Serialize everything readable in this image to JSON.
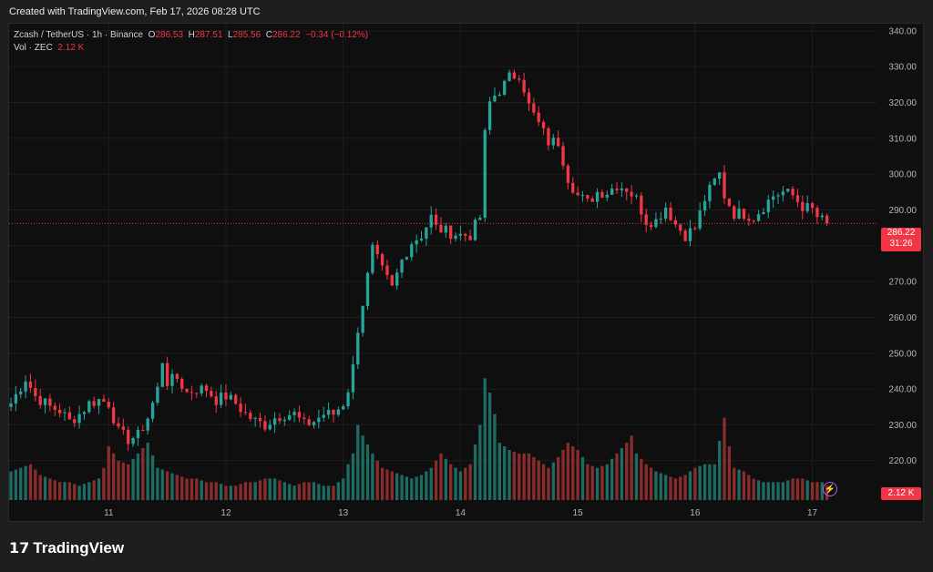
{
  "header": {
    "created": "Created with TradingView.com, Feb 17, 2026 08:28 UTC"
  },
  "legend": {
    "symbol": "Zcash / TetherUS · 1h · Binance",
    "o_label": "O",
    "o": "286.53",
    "h_label": "H",
    "h": "287.51",
    "l_label": "L",
    "l": "285.56",
    "c_label": "C",
    "c": "286.22",
    "change": "−0.34 (−0.12%)",
    "vol_label": "Vol · ZEC",
    "vol": "2.12 K"
  },
  "price_tag": {
    "price": "286.22",
    "countdown": "31:26"
  },
  "vol_tag": "2.12 K",
  "brand": "TradingView",
  "colors": {
    "up": "#26a69a",
    "down": "#f23645",
    "vol_up": "#1e6b63",
    "vol_down": "#8a2c2c",
    "background": "#0f0f0f",
    "grid": "#1e1e1e"
  },
  "chart_data": {
    "type": "candlestick",
    "y_ticks": [
      220,
      230,
      240,
      250,
      260,
      270,
      280,
      290,
      300,
      310,
      320,
      330,
      340
    ],
    "y_tick_labels": [
      "220.00",
      "230.00",
      "240.00",
      "250.00",
      "260.00",
      "270.00",
      "280.00",
      "290.00",
      "300.00",
      "310.00",
      "320.00",
      "330.00",
      "340.00"
    ],
    "ylim": [
      209,
      342
    ],
    "x_tick_labels": [
      "11",
      "12",
      "13",
      "14",
      "15",
      "16",
      "17"
    ],
    "current_price": 286.22,
    "series": [
      {
        "name": "Zcash / TetherUS",
        "close_points": [
          [
            0,
            236
          ],
          [
            3,
            243
          ],
          [
            5,
            238
          ],
          [
            8,
            235
          ],
          [
            10,
            234
          ],
          [
            12,
            231
          ],
          [
            14,
            233
          ],
          [
            16,
            236
          ],
          [
            18,
            237
          ],
          [
            20,
            236
          ],
          [
            22,
            228
          ],
          [
            24,
            226
          ],
          [
            26,
            227
          ],
          [
            28,
            232
          ],
          [
            30,
            240
          ],
          [
            31,
            248
          ],
          [
            32,
            242
          ],
          [
            34,
            243
          ],
          [
            36,
            239
          ],
          [
            38,
            240
          ],
          [
            40,
            240
          ],
          [
            42,
            237
          ],
          [
            44,
            238
          ],
          [
            46,
            236
          ],
          [
            48,
            233
          ],
          [
            50,
            231
          ],
          [
            52,
            230
          ],
          [
            54,
            232
          ],
          [
            56,
            233
          ],
          [
            58,
            233
          ],
          [
            60,
            230
          ],
          [
            62,
            231
          ],
          [
            64,
            233
          ],
          [
            66,
            233
          ],
          [
            68,
            236
          ],
          [
            69,
            240
          ],
          [
            70,
            246
          ],
          [
            71,
            257
          ],
          [
            72,
            264
          ],
          [
            74,
            279
          ],
          [
            75,
            276
          ],
          [
            76,
            273
          ],
          [
            78,
            268
          ],
          [
            80,
            276
          ],
          [
            82,
            281
          ],
          [
            84,
            283
          ],
          [
            86,
            288
          ],
          [
            87,
            285
          ],
          [
            89,
            284
          ],
          [
            92,
            283
          ],
          [
            94,
            283
          ],
          [
            96,
            288
          ],
          [
            97,
            311
          ],
          [
            98,
            320
          ],
          [
            99,
            322
          ],
          [
            101,
            325
          ],
          [
            102,
            327
          ],
          [
            104,
            328
          ],
          [
            105,
            324
          ],
          [
            106,
            319
          ],
          [
            108,
            314
          ],
          [
            110,
            309
          ],
          [
            112,
            309
          ],
          [
            114,
            299
          ],
          [
            116,
            294
          ],
          [
            118,
            292
          ],
          [
            120,
            295
          ],
          [
            122,
            295
          ],
          [
            124,
            297
          ],
          [
            126,
            296
          ],
          [
            128,
            293
          ],
          [
            130,
            287
          ],
          [
            132,
            287
          ],
          [
            134,
            291
          ],
          [
            136,
            286
          ],
          [
            138,
            283
          ],
          [
            140,
            285
          ],
          [
            142,
            293
          ],
          [
            144,
            298
          ],
          [
            145,
            300
          ],
          [
            146,
            294
          ],
          [
            148,
            289
          ],
          [
            150,
            289
          ],
          [
            152,
            288
          ],
          [
            154,
            291
          ],
          [
            156,
            294
          ],
          [
            158,
            295
          ],
          [
            160,
            294
          ],
          [
            162,
            291
          ],
          [
            164,
            290
          ],
          [
            165,
            288
          ],
          [
            166,
            287
          ],
          [
            167,
            286.22
          ]
        ],
        "volume_points": [
          [
            0,
            217
          ],
          [
            2,
            218
          ],
          [
            4,
            219
          ],
          [
            6,
            216
          ],
          [
            8,
            215
          ],
          [
            10,
            214
          ],
          [
            12,
            214
          ],
          [
            14,
            213
          ],
          [
            16,
            214
          ],
          [
            18,
            215
          ],
          [
            19,
            218
          ],
          [
            20,
            224
          ],
          [
            22,
            220
          ],
          [
            24,
            219
          ],
          [
            26,
            222
          ],
          [
            28,
            225
          ],
          [
            30,
            218
          ],
          [
            32,
            217
          ],
          [
            34,
            216
          ],
          [
            36,
            215
          ],
          [
            38,
            215
          ],
          [
            40,
            214
          ],
          [
            42,
            214
          ],
          [
            44,
            213
          ],
          [
            46,
            213
          ],
          [
            48,
            214
          ],
          [
            50,
            214
          ],
          [
            52,
            215
          ],
          [
            54,
            215
          ],
          [
            56,
            214
          ],
          [
            58,
            213
          ],
          [
            60,
            214
          ],
          [
            62,
            214
          ],
          [
            64,
            213
          ],
          [
            66,
            213
          ],
          [
            68,
            215
          ],
          [
            69,
            219
          ],
          [
            70,
            222
          ],
          [
            71,
            230
          ],
          [
            72,
            227
          ],
          [
            74,
            222
          ],
          [
            76,
            218
          ],
          [
            78,
            217
          ],
          [
            80,
            216
          ],
          [
            82,
            215
          ],
          [
            84,
            216
          ],
          [
            86,
            218
          ],
          [
            88,
            222
          ],
          [
            90,
            219
          ],
          [
            92,
            217
          ],
          [
            94,
            219
          ],
          [
            96,
            230
          ],
          [
            97,
            243
          ],
          [
            98,
            239
          ],
          [
            99,
            233
          ],
          [
            100,
            225
          ],
          [
            102,
            223
          ],
          [
            104,
            222
          ],
          [
            106,
            222
          ],
          [
            108,
            220
          ],
          [
            110,
            218
          ],
          [
            112,
            221
          ],
          [
            114,
            225
          ],
          [
            116,
            223
          ],
          [
            118,
            219
          ],
          [
            120,
            218
          ],
          [
            122,
            219
          ],
          [
            124,
            222
          ],
          [
            126,
            225
          ],
          [
            127,
            227
          ],
          [
            128,
            222
          ],
          [
            130,
            219
          ],
          [
            132,
            217
          ],
          [
            134,
            216
          ],
          [
            136,
            215
          ],
          [
            138,
            216
          ],
          [
            140,
            218
          ],
          [
            142,
            219
          ],
          [
            144,
            219
          ],
          [
            146,
            232
          ],
          [
            147,
            224
          ],
          [
            148,
            218
          ],
          [
            150,
            217
          ],
          [
            152,
            215
          ],
          [
            154,
            214
          ],
          [
            156,
            214
          ],
          [
            158,
            214
          ],
          [
            160,
            215
          ],
          [
            162,
            215
          ],
          [
            164,
            214
          ],
          [
            166,
            214
          ],
          [
            167,
            213
          ]
        ]
      }
    ]
  }
}
